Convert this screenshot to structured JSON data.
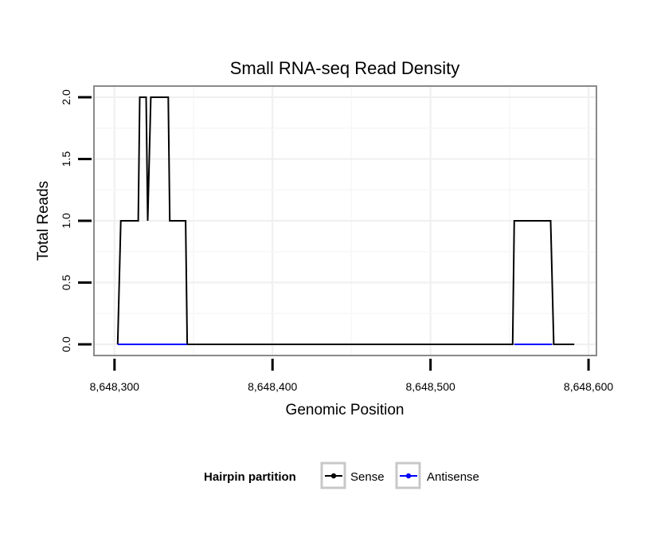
{
  "chart_data": {
    "type": "line",
    "title": "Small RNA-seq Read Density",
    "xlabel": "Genomic Position",
    "ylabel": "Total Reads",
    "xlim": [
      8648287,
      8648605
    ],
    "ylim": [
      -0.09,
      2.09
    ],
    "x_ticks": [
      8648300,
      8648400,
      8648500,
      8648600
    ],
    "x_tick_labels": [
      "8,648,300",
      "8,648,400",
      "8,648,500",
      "8,648,600"
    ],
    "y_ticks": [
      0,
      0.5,
      1,
      1.5,
      2
    ],
    "y_tick_labels": [
      "0.0",
      "0.5",
      "1.0",
      "1.5",
      "2.0"
    ],
    "grid": true,
    "legend": {
      "title": "Hairpin partition",
      "position": "bottom",
      "entries": [
        "Sense",
        "Antisense"
      ]
    },
    "series": [
      {
        "name": "Sense",
        "color": "#000000",
        "x": [
          8648302,
          8648304,
          8648315,
          8648316,
          8648320,
          8648321,
          8648323,
          8648334,
          8648335,
          8648345,
          8648346,
          8648552,
          8648553,
          8648576,
          8648578,
          8648591
        ],
        "y": [
          0,
          1,
          1,
          2,
          2,
          1,
          2,
          2,
          1,
          1,
          0,
          0,
          1,
          1,
          0,
          0
        ]
      },
      {
        "name": "Antisense",
        "color": "#0000ff",
        "x": [
          8648302,
          8648346,
          8648553,
          8648577
        ],
        "y": [
          0,
          0,
          0,
          0
        ],
        "segments": [
          [
            8648302,
            8648346
          ],
          [
            8648553,
            8648577
          ]
        ]
      }
    ]
  }
}
